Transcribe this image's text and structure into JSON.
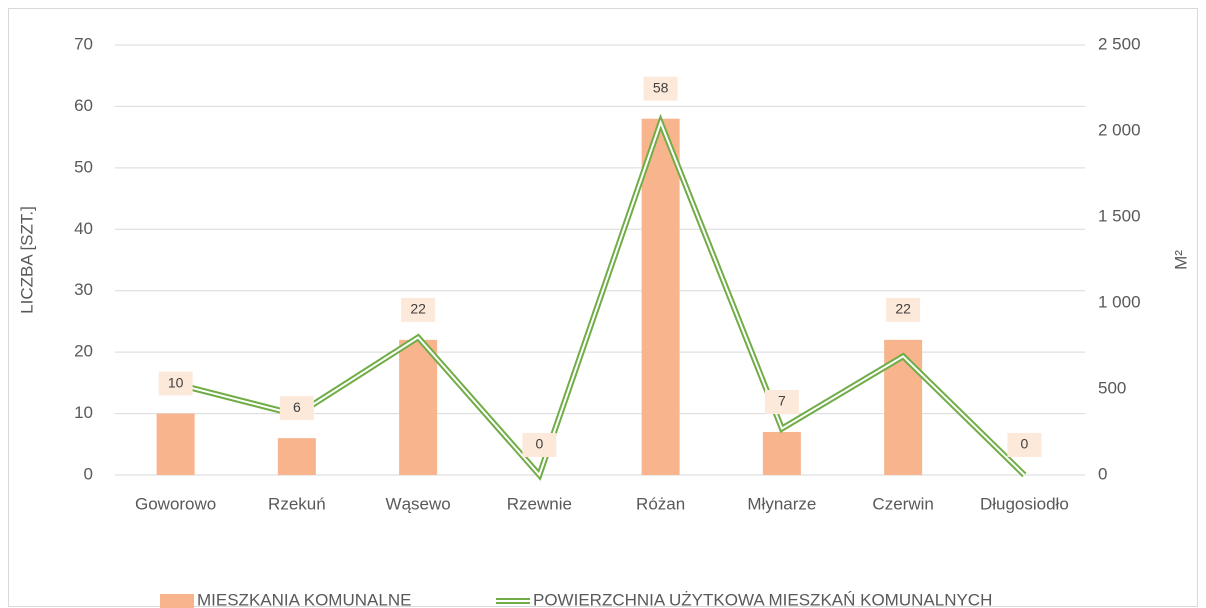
{
  "chart_data": {
    "type": "bar_line",
    "y_label": "LICZBA [SZT.]",
    "y2_label": "M²",
    "categories": [
      "Goworowo",
      "Rzekuń",
      "Wąsewo",
      "Rzewnie",
      "Różan",
      "Młynarze",
      "Czerwin",
      "Długosiodło"
    ],
    "series": [
      {
        "name": "MIESZKANIA KOMUNALNE",
        "color": "#f8b48c",
        "type": "bar",
        "values": [
          10,
          6,
          22,
          0,
          58,
          7,
          22,
          0
        ]
      },
      {
        "name": "POWIERZCHNIA UŻYTKOWA MIESZKAŃ KOMUNALNYCH",
        "color": "#70ad47",
        "type": "line",
        "axis": "y2",
        "values": [
          530,
          350,
          800,
          0,
          2050,
          270,
          690,
          0
        ]
      }
    ],
    "ylim": [
      0,
      70
    ],
    "yticks": [
      0,
      10,
      20,
      30,
      40,
      50,
      60,
      70
    ],
    "y2lim": [
      0,
      2500
    ],
    "y2ticks": [
      0,
      500,
      {
        "value": 1000,
        "label": "1 000"
      },
      {
        "value": 1500,
        "label": "1 500"
      },
      {
        "value": 2000,
        "label": "2 000"
      },
      {
        "value": 2500,
        "label": "2 500"
      }
    ],
    "grid": true,
    "legend": "bottom"
  }
}
